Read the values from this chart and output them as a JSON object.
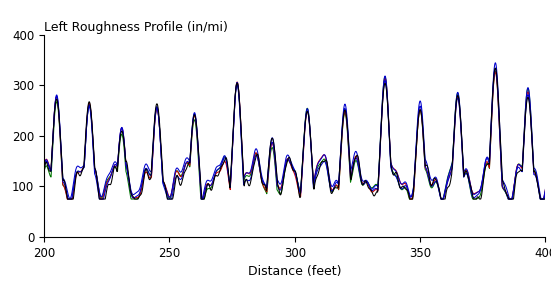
{
  "title": "Left Roughness Profile (in/mi)",
  "xlabel": "Distance (feet)",
  "xlim": [
    200,
    400
  ],
  "ylim": [
    0,
    400
  ],
  "xticks": [
    200,
    250,
    300,
    350,
    400
  ],
  "yticks": [
    0,
    100,
    200,
    300,
    400
  ],
  "colors": [
    "#000000",
    "#0000cc",
    "#cc0000",
    "#006600",
    "#0000cc"
  ],
  "linewidths": [
    0.8,
    0.8,
    0.8,
    0.8,
    0.8
  ],
  "figsize": [
    5.51,
    2.89
  ],
  "dpi": 100,
  "joint_positions": [
    205,
    218,
    231,
    245,
    260,
    277,
    291,
    305,
    320,
    336,
    350,
    365,
    380,
    393
  ],
  "joint_heights": [
    278,
    260,
    215,
    255,
    242,
    302,
    190,
    248,
    255,
    310,
    260,
    275,
    335,
    283
  ]
}
